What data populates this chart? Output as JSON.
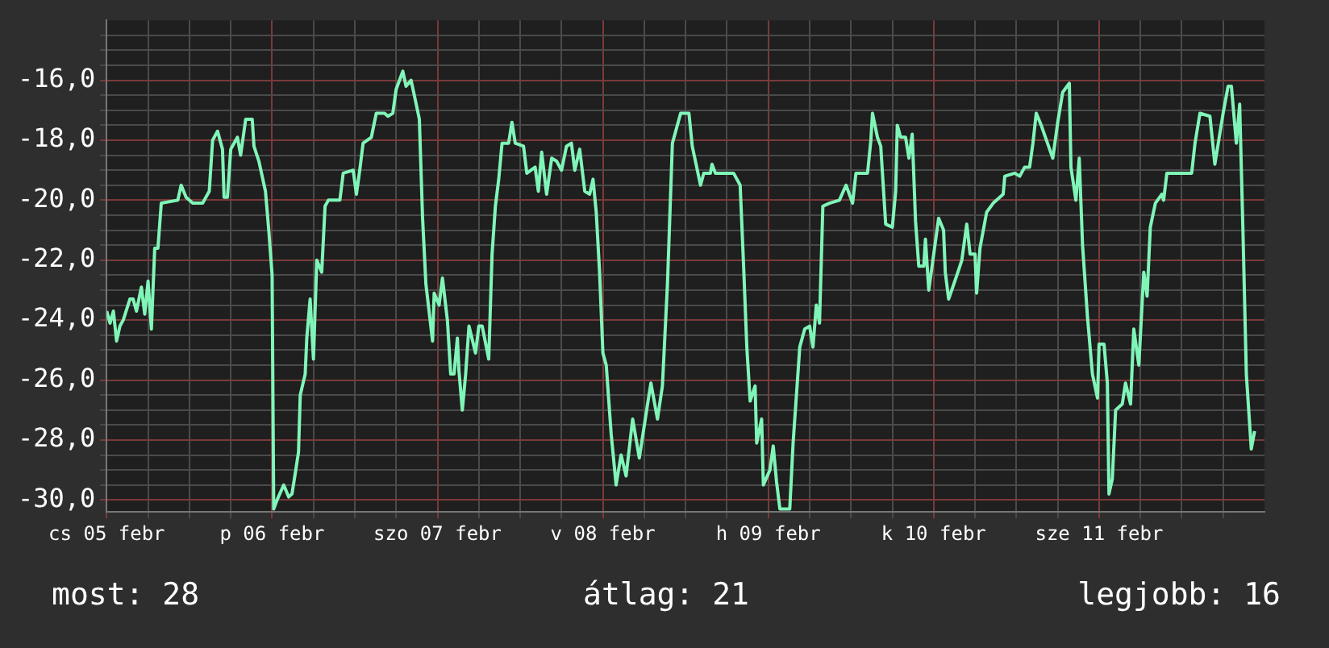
{
  "chart_data": {
    "type": "line",
    "grid": true,
    "legend": false,
    "marker": "none",
    "line_style": "solid",
    "xlim": [
      "--02-05T00:00",
      "--02-12T00:00"
    ],
    "ylim": [
      -30.4,
      -14
    ],
    "xticks": [
      {
        "value": "--02-05T00:00",
        "label": "cs 05 febr"
      },
      {
        "value": "--02-05T06:00",
        "label": null
      },
      {
        "value": "--02-05T12:00",
        "label": null
      },
      {
        "value": "--02-05T18:00",
        "label": null
      },
      {
        "value": "--02-06T00:00",
        "label": "p 06 febr"
      },
      {
        "value": "--02-06T06:00",
        "label": null
      },
      {
        "value": "--02-06T12:00",
        "label": null
      },
      {
        "value": "--02-06T18:00",
        "label": null
      },
      {
        "value": "--02-07T00:00",
        "label": "szo 07 febr"
      },
      {
        "value": "--02-07T06:00",
        "label": null
      },
      {
        "value": "--02-07T12:00",
        "label": null
      },
      {
        "value": "--02-07T18:00",
        "label": null
      },
      {
        "value": "--02-08T00:00",
        "label": "v 08 febr"
      },
      {
        "value": "--02-08T06:00",
        "label": null
      },
      {
        "value": "--02-08T12:00",
        "label": null
      },
      {
        "value": "--02-08T18:00",
        "label": null
      },
      {
        "value": "--02-09T00:00",
        "label": "h 09 febr"
      },
      {
        "value": "--02-09T06:00",
        "label": null
      },
      {
        "value": "--02-09T12:00",
        "label": null
      },
      {
        "value": "--02-09T18:00",
        "label": null
      },
      {
        "value": "--02-10T00:00",
        "label": "k 10 febr"
      },
      {
        "value": "--02-10T06:00",
        "label": null
      },
      {
        "value": "--02-10T12:00",
        "label": null
      },
      {
        "value": "--02-10T18:00",
        "label": null
      },
      {
        "value": "--02-11T00:00",
        "label": "sze 11 febr"
      },
      {
        "value": "--02-11T06:00",
        "label": null
      },
      {
        "value": "--02-11T12:00",
        "label": null
      },
      {
        "value": "--02-11T18:00",
        "label": null
      }
    ],
    "yticks": [
      {
        "value": -30,
        "label": "-30,0"
      },
      {
        "value": -29.5,
        "label": null
      },
      {
        "value": -29,
        "label": null
      },
      {
        "value": -28.5,
        "label": null
      },
      {
        "value": -28,
        "label": "-28,0"
      },
      {
        "value": -27.5,
        "label": null
      },
      {
        "value": -27,
        "label": null
      },
      {
        "value": -26.5,
        "label": null
      },
      {
        "value": -26,
        "label": "-26,0"
      },
      {
        "value": -25.5,
        "label": null
      },
      {
        "value": -25,
        "label": null
      },
      {
        "value": -24.5,
        "label": null
      },
      {
        "value": -24,
        "label": "-24,0"
      },
      {
        "value": -23.5,
        "label": null
      },
      {
        "value": -23,
        "label": null
      },
      {
        "value": -22.5,
        "label": null
      },
      {
        "value": -22,
        "label": "-22,0"
      },
      {
        "value": -21.5,
        "label": null
      },
      {
        "value": -21,
        "label": null
      },
      {
        "value": -20.5,
        "label": null
      },
      {
        "value": -20,
        "label": "-20,0"
      },
      {
        "value": -19.5,
        "label": null
      },
      {
        "value": -19,
        "label": null
      },
      {
        "value": -18.5,
        "label": null
      },
      {
        "value": -18,
        "label": "-18,0"
      },
      {
        "value": -17.5,
        "label": null
      },
      {
        "value": -17,
        "label": null
      },
      {
        "value": -16.5,
        "label": null
      },
      {
        "value": -16,
        "label": "-16,0"
      },
      {
        "value": -15.5,
        "label": null
      },
      {
        "value": -15,
        "label": null
      },
      {
        "value": -14.5,
        "label": null
      }
    ],
    "annotations": [
      "most: 28",
      "átlag: 21",
      "legjobb: 16"
    ],
    "x": [
      "--02-05T00:00",
      "--02-05T00:29",
      "--02-05T00:58",
      "--02-05T01:26",
      "--02-05T01:55",
      "--02-05T02:24",
      "--02-05T03:22",
      "--02-05T03:50",
      "--02-05T04:19",
      "--02-05T05:02",
      "--02-05T05:31",
      "--02-05T06:00",
      "--02-05T06:29",
      "--02-05T06:58",
      "--02-05T07:26",
      "--02-05T07:55",
      "--02-05T10:19",
      "--02-05T10:48",
      "--02-05T11:31",
      "--02-05T12:29",
      "--02-05T13:55",
      "--02-05T14:53",
      "--02-05T15:22",
      "--02-05T16:05",
      "--02-05T16:48",
      "--02-05T17:02",
      "--02-05T17:31",
      "--02-05T18:00",
      "--02-05T18:58",
      "--02-05T19:26",
      "--02-05T20:10",
      "--02-05T21:07",
      "--02-05T21:22",
      "--02-05T22:05",
      "--02-05T23:02",
      "--02-05T23:31",
      "--02-06T00:00",
      "--02-06T00:14",
      "--02-06T00:43",
      "--02-06T01:41",
      "--02-06T02:24",
      "--02-06T02:53",
      "--02-06T03:22",
      "--02-06T03:50",
      "--02-06T04:05",
      "--02-06T04:48",
      "--02-06T05:02",
      "--02-06T05:31",
      "--02-06T06:00",
      "--02-06T06:29",
      "--02-06T07:12",
      "--02-06T07:41",
      "--02-06T08:10",
      "--02-06T09:22",
      "--02-06T09:50",
      "--02-06T10:19",
      "--02-06T11:46",
      "--02-06T12:14",
      "--02-06T12:43",
      "--02-06T13:12",
      "--02-06T14:24",
      "--02-06T15:07",
      "--02-06T16:19",
      "--02-06T16:48",
      "--02-06T17:31",
      "--02-06T18:00",
      "--02-06T18:58",
      "--02-06T19:26",
      "--02-06T20:10",
      "--02-06T20:38",
      "--02-06T21:22",
      "--02-06T21:50",
      "--02-06T22:19",
      "--02-06T23:17",
      "--02-06T23:31",
      "--02-07T00:14",
      "--02-07T00:43",
      "--02-07T01:26",
      "--02-07T01:55",
      "--02-07T02:24",
      "--02-07T02:53",
      "--02-07T03:07",
      "--02-07T03:36",
      "--02-07T04:05",
      "--02-07T04:34",
      "--02-07T05:31",
      "--02-07T06:00",
      "--02-07T06:29",
      "--02-07T07:26",
      "--02-07T07:55",
      "--02-07T08:24",
      "--02-07T08:53",
      "--02-07T09:22",
      "--02-07T10:19",
      "--02-07T10:48",
      "--02-07T11:17",
      "--02-07T12:29",
      "--02-07T12:58",
      "--02-07T14:10",
      "--02-07T14:38",
      "--02-07T15:07",
      "--02-07T15:50",
      "--02-07T16:34",
      "--02-07T17:17",
      "--02-07T18:00",
      "--02-07T18:43",
      "--02-07T19:26",
      "--02-07T19:55",
      "--02-07T20:38",
      "--02-07T21:22",
      "--02-07T22:05",
      "--02-07T22:34",
      "--02-07T23:02",
      "--02-07T23:31",
      "--02-08T00:00",
      "--02-08T00:29",
      "--02-08T01:12",
      "--02-08T01:55",
      "--02-08T02:38",
      "--02-08T03:22",
      "--02-08T04:19",
      "--02-08T05:17",
      "--02-08T06:29",
      "--02-08T06:58",
      "--02-08T07:55",
      "--02-08T08:38",
      "--02-08T09:22",
      "--02-08T10:05",
      "--02-08T10:34",
      "--02-08T11:17",
      "--02-08T12:29",
      "--02-08T12:58",
      "--02-08T14:10",
      "--02-08T14:38",
      "--02-08T15:36",
      "--02-08T15:50",
      "--02-08T16:19",
      "--02-08T18:58",
      "--02-08T19:55",
      "--02-08T20:24",
      "--02-08T20:53",
      "--02-08T21:22",
      "--02-08T22:05",
      "--02-08T22:19",
      "--02-08T23:02",
      "--02-08T23:17",
      "--02-09T00:14",
      "--02-09T00:43",
      "--02-09T01:12",
      "--02-09T01:41",
      "--02-09T03:07",
      "--02-09T03:36",
      "--02-09T04:34",
      "--02-09T05:17",
      "--02-09T06:00",
      "--02-09T06:29",
      "--02-09T06:58",
      "--02-09T07:26",
      "--02-09T07:55",
      "--02-09T08:53",
      "--02-09T10:19",
      "--02-09T11:17",
      "--02-09T12:14",
      "--02-09T12:43",
      "--02-09T14:24",
      "--02-09T14:53",
      "--02-09T15:07",
      "--02-09T15:50",
      "--02-09T16:19",
      "--02-09T17:02",
      "--02-09T18:00",
      "--02-09T18:29",
      "--02-09T18:43",
      "--02-09T19:12",
      "--02-09T19:55",
      "--02-09T20:24",
      "--02-09T20:53",
      "--02-09T21:22",
      "--02-09T21:50",
      "--02-09T22:34",
      "--02-09T22:48",
      "--02-09T23:17",
      "--02-09T23:46",
      "--02-10T00:43",
      "--02-10T01:26",
      "--02-10T01:41",
      "--02-10T02:10",
      "--02-10T03:22",
      "--02-10T04:05",
      "--02-10T04:48",
      "--02-10T05:17",
      "--02-10T06:00",
      "--02-10T06:14",
      "--02-10T06:43",
      "--02-10T07:41",
      "--02-10T08:38",
      "--02-10T10:05",
      "--02-10T10:19",
      "--02-10T11:46",
      "--02-10T12:29",
      "--02-10T13:12",
      "--02-10T13:55",
      "--02-10T14:24",
      "--02-10T14:53",
      "--02-10T15:36",
      "--02-10T17:17",
      "--02-10T18:00",
      "--02-10T18:43",
      "--02-10T19:41",
      "--02-10T19:55",
      "--02-10T20:38",
      "--02-10T21:07",
      "--02-10T21:36",
      "--02-10T22:19",
      "--02-10T23:02",
      "--02-10T23:46",
      "--02-11T00:00",
      "--02-11T00:43",
      "--02-11T01:12",
      "--02-11T01:26",
      "--02-11T01:55",
      "--02-11T02:24",
      "--02-11T03:22",
      "--02-11T03:50",
      "--02-11T04:34",
      "--02-11T05:02",
      "--02-11T05:46",
      "--02-11T06:29",
      "--02-11T06:58",
      "--02-11T07:26",
      "--02-11T08:10",
      "--02-11T09:07",
      "--02-11T09:22",
      "--02-11T09:50",
      "--02-11T13:26",
      "--02-11T13:55",
      "--02-11T14:38",
      "--02-11T16:05",
      "--02-11T16:48",
      "--02-11T18:00",
      "--02-11T18:43",
      "--02-11T19:12",
      "--02-11T19:55",
      "--02-11T20:24",
      "--02-11T20:53",
      "--02-11T21:22",
      "--02-11T22:05",
      "--02-11T22:34"
    ],
    "series": [
      {
        "color": "#80f5b8",
        "values": [
          -23.7,
          -24.1,
          -23.7,
          -24.7,
          -24.2,
          -24,
          -23.3,
          -23.3,
          -23.7,
          -22.9,
          -23.8,
          -22.7,
          -24.3,
          -21.6,
          -21.6,
          -20.1,
          -20,
          -19.5,
          -19.9,
          -20.1,
          -20.1,
          -19.7,
          -18,
          -17.7,
          -18.3,
          -19.9,
          -19.9,
          -18.3,
          -17.9,
          -18.5,
          -17.3,
          -17.3,
          -18.2,
          -18.7,
          -19.7,
          -21,
          -22.5,
          -30.3,
          -30,
          -29.5,
          -29.9,
          -29.8,
          -29.1,
          -28.4,
          -26.5,
          -25.8,
          -24.6,
          -23.3,
          -25.3,
          -22,
          -22.4,
          -20.2,
          -20,
          -20,
          -20,
          -19.1,
          -19,
          -19.8,
          -19,
          -18.1,
          -17.9,
          -17.1,
          -17.1,
          -17.2,
          -17.1,
          -16.3,
          -15.7,
          -16.2,
          -16,
          -16.5,
          -17.3,
          -20.6,
          -22.8,
          -24.7,
          -23.1,
          -23.5,
          -22.6,
          -24,
          -25.8,
          -25.8,
          -24.6,
          -25.7,
          -27,
          -25.8,
          -24.2,
          -25.1,
          -24.2,
          -24.2,
          -25.3,
          -21.8,
          -20.2,
          -19.3,
          -18.1,
          -18.1,
          -17.4,
          -18.1,
          -18.2,
          -19.1,
          -18.9,
          -19.7,
          -18.4,
          -19.8,
          -18.6,
          -18.7,
          -19,
          -18.2,
          -18.1,
          -19,
          -18.3,
          -19.7,
          -19.8,
          -19.3,
          -20.4,
          -22.4,
          -25.1,
          -25.5,
          -27.8,
          -29.5,
          -28.5,
          -29.2,
          -27.3,
          -28.6,
          -26.8,
          -26.1,
          -27.3,
          -26.2,
          -22.8,
          -18.1,
          -17.7,
          -17.1,
          -17.1,
          -18.2,
          -19.5,
          -19.1,
          -19.1,
          -18.8,
          -19.1,
          -19.1,
          -19.5,
          -22.1,
          -24.9,
          -26.7,
          -26.2,
          -28.1,
          -27.3,
          -29.5,
          -29,
          -28.2,
          -29.4,
          -30.3,
          -30.3,
          -28.1,
          -24.9,
          -24.3,
          -24.2,
          -24.9,
          -23.5,
          -24.1,
          -20.2,
          -20.1,
          -20,
          -19.5,
          -20.1,
          -19.1,
          -19.1,
          -18,
          -17.1,
          -17.9,
          -18.2,
          -20.8,
          -20.9,
          -19.7,
          -17.5,
          -17.9,
          -17.9,
          -18.6,
          -17.8,
          -20.7,
          -22.2,
          -22.2,
          -21.3,
          -23,
          -22.2,
          -20.6,
          -21,
          -22.4,
          -23.3,
          -22.5,
          -22,
          -20.8,
          -21.8,
          -21.8,
          -23.1,
          -21.6,
          -20.4,
          -20.1,
          -19.8,
          -19.2,
          -19.1,
          -19.2,
          -18.9,
          -18.9,
          -18.1,
          -17.1,
          -17.5,
          -18.6,
          -17.4,
          -16.4,
          -16.1,
          -18.9,
          -20,
          -18.6,
          -21.5,
          -23.9,
          -25.8,
          -26.6,
          -24.8,
          -24.8,
          -26.1,
          -29.8,
          -29.3,
          -27,
          -26.8,
          -26.1,
          -26.8,
          -24.3,
          -25.5,
          -22.4,
          -23.2,
          -20.9,
          -20.1,
          -19.8,
          -20,
          -19.1,
          -19.1,
          -18.1,
          -17.1,
          -17.2,
          -18.8,
          -17.1,
          -16.2,
          -16.2,
          -18.1,
          -16.8,
          -21.1,
          -25.8,
          -28.3,
          -27.7
        ]
      }
    ]
  }
}
